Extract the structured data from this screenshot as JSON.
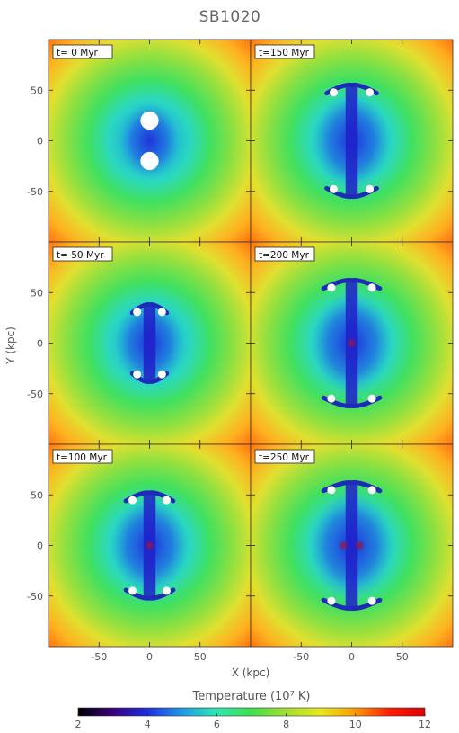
{
  "chart_data": {
    "type": "heatmap",
    "title": "SB1020",
    "xlabel": "X (kpc)",
    "ylabel": "Y (kpc)",
    "xlim": [
      -100,
      100
    ],
    "ylim": [
      -100,
      100
    ],
    "xticks": [
      -50,
      0,
      50
    ],
    "yticks": [
      50,
      0,
      -50
    ],
    "panels": [
      {
        "label": "t=  0 Myr"
      },
      {
        "label": "t=150 Myr"
      },
      {
        "label": "t= 50 Myr"
      },
      {
        "label": "t=200 Myr"
      },
      {
        "label": "t=100 Myr"
      },
      {
        "label": "t=250 Myr"
      }
    ],
    "colorbar": {
      "label": "Temperature (10⁷ K)",
      "range": [
        2,
        12
      ],
      "ticks": [
        2,
        4,
        6,
        8,
        10,
        12
      ],
      "colormap": [
        "#000000",
        "#3a0080",
        "#1e2fe0",
        "#1e9ae8",
        "#2ee8b0",
        "#3ee04a",
        "#a6e030",
        "#e8e81e",
        "#ff9a00",
        "#ff1a00",
        "#e00000"
      ]
    }
  }
}
